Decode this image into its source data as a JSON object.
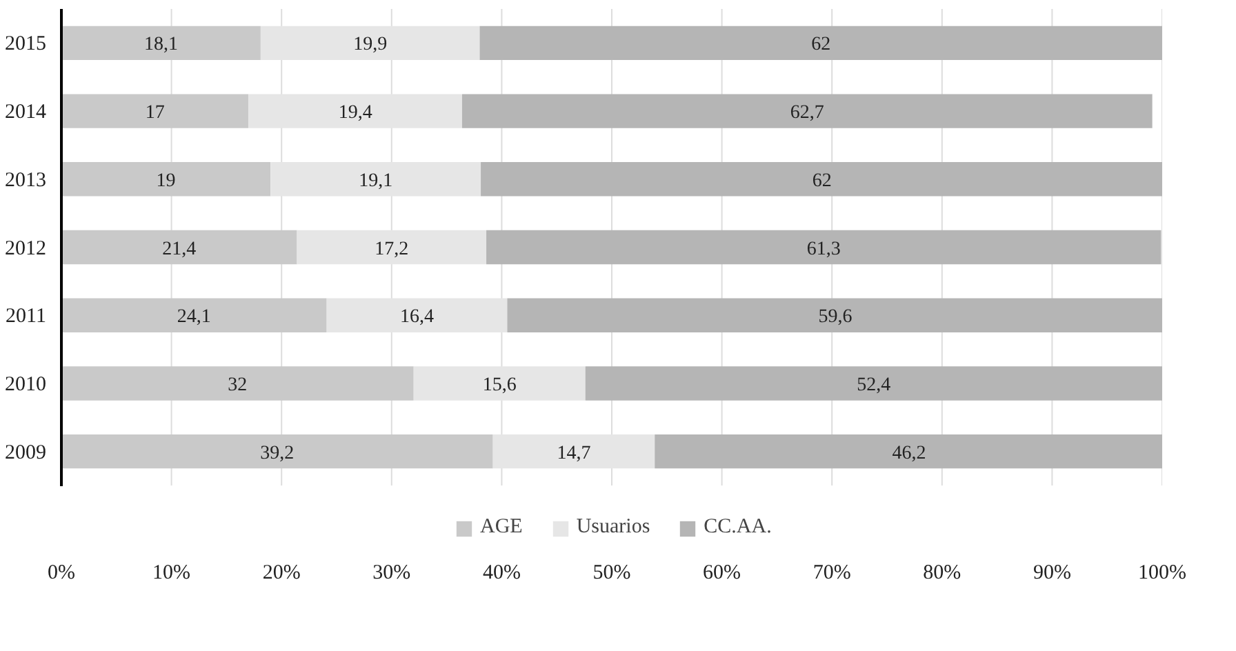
{
  "chart_data": {
    "type": "bar",
    "orientation": "horizontal",
    "stacked": true,
    "categories": [
      "2015",
      "2014",
      "2013",
      "2012",
      "2011",
      "2010",
      "2009"
    ],
    "series": [
      {
        "name": "AGE",
        "color": "#c9c9c9",
        "values": [
          18.1,
          17,
          19,
          21.4,
          24.1,
          32,
          39.2
        ],
        "value_labels": [
          "18,1",
          "17",
          "19",
          "21,4",
          "24,1",
          "32",
          "39,2"
        ]
      },
      {
        "name": "Usuarios",
        "color": "#e6e6e6",
        "values": [
          19.9,
          19.4,
          19.1,
          17.2,
          16.4,
          15.6,
          14.7
        ],
        "value_labels": [
          "19,9",
          "19,4",
          "19,1",
          "17,2",
          "16,4",
          "15,6",
          "14,7"
        ]
      },
      {
        "name": "CC.AA.",
        "color": "#b5b5b5",
        "values": [
          62,
          62.7,
          62,
          61.3,
          59.6,
          52.4,
          46.2
        ],
        "value_labels": [
          "62",
          "62,7",
          "62",
          "61,3",
          "59,6",
          "52,4",
          "46,2"
        ]
      }
    ],
    "xlim": [
      0,
      100
    ],
    "xticks": [
      {
        "value": 0,
        "label": "0%"
      },
      {
        "value": 10,
        "label": "10%"
      },
      {
        "value": 20,
        "label": "20%"
      },
      {
        "value": 30,
        "label": "30%"
      },
      {
        "value": 40,
        "label": "40%"
      },
      {
        "value": 50,
        "label": "50%"
      },
      {
        "value": 60,
        "label": "60%"
      },
      {
        "value": 70,
        "label": "70%"
      },
      {
        "value": 80,
        "label": "80%"
      },
      {
        "value": 90,
        "label": "90%"
      },
      {
        "value": 100,
        "label": "100%"
      }
    ],
    "grid": "x",
    "legend": "bottom"
  }
}
